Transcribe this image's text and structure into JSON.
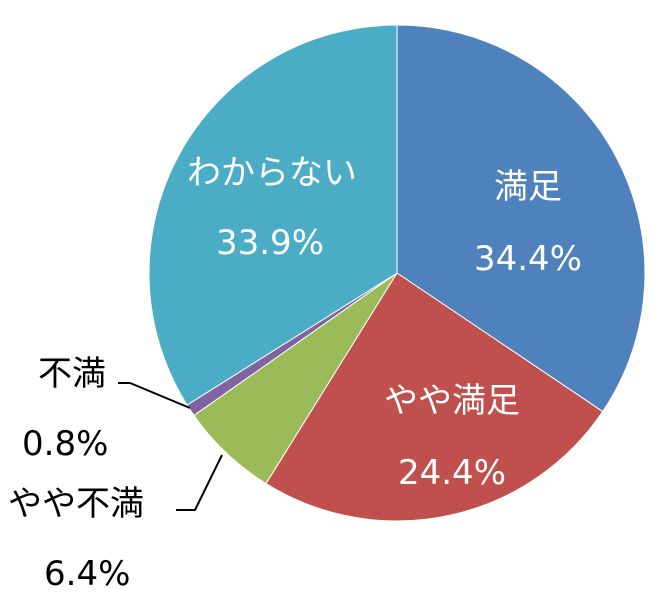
{
  "chart_data": {
    "type": "pie",
    "title": "",
    "slices": [
      {
        "label": "満足",
        "value": 34.4,
        "value_label": "34.4%",
        "color": "#4F81BD"
      },
      {
        "label": "やや満足",
        "value": 24.4,
        "value_label": "24.4%",
        "color": "#C0504D"
      },
      {
        "label": "やや不満",
        "value": 6.4,
        "value_label": "6.4%",
        "color": "#9BBB59"
      },
      {
        "label": "不満",
        "value": 0.8,
        "value_label": "0.8%",
        "color": "#8064A2"
      },
      {
        "label": "わからない",
        "value": 33.9,
        "value_label": "33.9%",
        "color": "#4BACC6"
      }
    ],
    "start_angle_deg": 0,
    "direction": "clockwise",
    "legend": "none",
    "label_style": "category name and percentage"
  }
}
